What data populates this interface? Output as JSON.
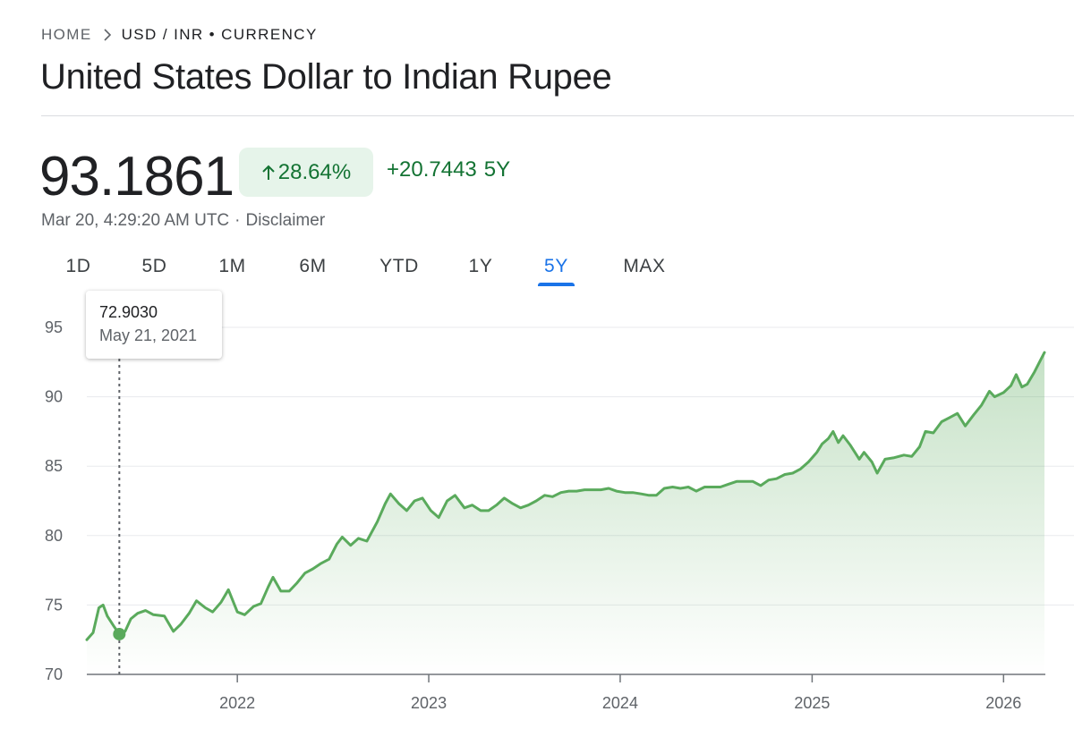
{
  "breadcrumb": {
    "home": "HOME",
    "current": "USD / INR • CURRENCY"
  },
  "title": "United States Dollar to Indian Rupee",
  "quote": {
    "price": "93.1861",
    "change_pct": "28.64%",
    "change_abs": "+20.7443",
    "change_period": "5Y",
    "timestamp": "Mar 20, 4:29:20 AM UTC",
    "disclaimer": "Disclaimer"
  },
  "ranges": [
    {
      "label": "1D"
    },
    {
      "label": "5D"
    },
    {
      "label": "1M"
    },
    {
      "label": "6M"
    },
    {
      "label": "YTD"
    },
    {
      "label": "1Y"
    },
    {
      "label": "5Y",
      "active": true
    },
    {
      "label": "MAX"
    }
  ],
  "tooltip": {
    "value": "72.9030",
    "date": "May 21, 2021"
  },
  "colors": {
    "line": "#5aaa5c",
    "positive": "#137333",
    "badge_bg": "#e6f4ea",
    "accent": "#1a73e8"
  },
  "chart_data": {
    "type": "area",
    "xlabel": "",
    "ylabel": "",
    "ylim": [
      70,
      95
    ],
    "xlim": [
      "2021-03-20",
      "2026-03-20"
    ],
    "y_ticks": [
      70,
      75,
      80,
      85,
      90,
      95
    ],
    "x_ticks": [
      {
        "label": "2022",
        "date": "2022-01-01"
      },
      {
        "label": "2023",
        "date": "2023-01-01"
      },
      {
        "label": "2024",
        "date": "2024-01-01"
      },
      {
        "label": "2025",
        "date": "2025-01-01"
      },
      {
        "label": "2026",
        "date": "2026-01-01"
      }
    ],
    "grid": "horizontal",
    "highlight": {
      "date": "2021-05-21",
      "value": 72.903
    },
    "series": [
      {
        "values": [
          [
            "2021-03-20",
            72.5
          ],
          [
            "2021-04-01",
            73.0
          ],
          [
            "2021-04-12",
            74.8
          ],
          [
            "2021-04-20",
            75.0
          ],
          [
            "2021-04-28",
            74.2
          ],
          [
            "2021-05-10",
            73.5
          ],
          [
            "2021-05-21",
            72.9
          ],
          [
            "2021-06-01",
            73.1
          ],
          [
            "2021-06-12",
            74.0
          ],
          [
            "2021-06-25",
            74.4
          ],
          [
            "2021-07-10",
            74.6
          ],
          [
            "2021-07-25",
            74.3
          ],
          [
            "2021-08-15",
            74.2
          ],
          [
            "2021-09-01",
            73.1
          ],
          [
            "2021-09-15",
            73.6
          ],
          [
            "2021-10-01",
            74.4
          ],
          [
            "2021-10-15",
            75.3
          ],
          [
            "2021-11-01",
            74.8
          ],
          [
            "2021-11-15",
            74.5
          ],
          [
            "2021-12-01",
            75.2
          ],
          [
            "2021-12-15",
            76.1
          ],
          [
            "2022-01-01",
            74.5
          ],
          [
            "2022-01-15",
            74.3
          ],
          [
            "2022-02-01",
            74.9
          ],
          [
            "2022-02-15",
            75.1
          ],
          [
            "2022-03-01",
            76.3
          ],
          [
            "2022-03-10",
            77.0
          ],
          [
            "2022-03-25",
            76.0
          ],
          [
            "2022-04-10",
            76.0
          ],
          [
            "2022-04-25",
            76.6
          ],
          [
            "2022-05-10",
            77.3
          ],
          [
            "2022-05-25",
            77.6
          ],
          [
            "2022-06-10",
            78.0
          ],
          [
            "2022-06-25",
            78.3
          ],
          [
            "2022-07-10",
            79.4
          ],
          [
            "2022-07-20",
            79.9
          ],
          [
            "2022-08-05",
            79.3
          ],
          [
            "2022-08-20",
            79.8
          ],
          [
            "2022-09-05",
            79.6
          ],
          [
            "2022-09-25",
            81.0
          ],
          [
            "2022-10-10",
            82.3
          ],
          [
            "2022-10-20",
            83.0
          ],
          [
            "2022-11-05",
            82.3
          ],
          [
            "2022-11-20",
            81.8
          ],
          [
            "2022-12-05",
            82.5
          ],
          [
            "2022-12-20",
            82.7
          ],
          [
            "2023-01-05",
            81.8
          ],
          [
            "2023-01-20",
            81.3
          ],
          [
            "2023-02-05",
            82.5
          ],
          [
            "2023-02-20",
            82.9
          ],
          [
            "2023-03-10",
            82.0
          ],
          [
            "2023-03-25",
            82.2
          ],
          [
            "2023-04-10",
            81.8
          ],
          [
            "2023-04-25",
            81.8
          ],
          [
            "2023-05-10",
            82.2
          ],
          [
            "2023-05-25",
            82.7
          ],
          [
            "2023-06-10",
            82.3
          ],
          [
            "2023-06-25",
            82.0
          ],
          [
            "2023-07-10",
            82.2
          ],
          [
            "2023-07-25",
            82.5
          ],
          [
            "2023-08-10",
            82.9
          ],
          [
            "2023-08-25",
            82.8
          ],
          [
            "2023-09-10",
            83.1
          ],
          [
            "2023-09-25",
            83.2
          ],
          [
            "2023-10-10",
            83.2
          ],
          [
            "2023-10-25",
            83.3
          ],
          [
            "2023-11-10",
            83.3
          ],
          [
            "2023-11-25",
            83.3
          ],
          [
            "2023-12-10",
            83.4
          ],
          [
            "2023-12-25",
            83.2
          ],
          [
            "2024-01-10",
            83.1
          ],
          [
            "2024-01-25",
            83.1
          ],
          [
            "2024-02-10",
            83.0
          ],
          [
            "2024-02-25",
            82.9
          ],
          [
            "2024-03-10",
            82.9
          ],
          [
            "2024-03-25",
            83.4
          ],
          [
            "2024-04-10",
            83.5
          ],
          [
            "2024-04-25",
            83.4
          ],
          [
            "2024-05-10",
            83.5
          ],
          [
            "2024-05-25",
            83.2
          ],
          [
            "2024-06-10",
            83.5
          ],
          [
            "2024-06-25",
            83.5
          ],
          [
            "2024-07-10",
            83.5
          ],
          [
            "2024-07-25",
            83.7
          ],
          [
            "2024-08-10",
            83.9
          ],
          [
            "2024-08-25",
            83.9
          ],
          [
            "2024-09-10",
            83.9
          ],
          [
            "2024-09-25",
            83.6
          ],
          [
            "2024-10-10",
            84.0
          ],
          [
            "2024-10-25",
            84.1
          ],
          [
            "2024-11-10",
            84.4
          ],
          [
            "2024-11-25",
            84.5
          ],
          [
            "2024-12-10",
            84.8
          ],
          [
            "2024-12-25",
            85.3
          ],
          [
            "2025-01-10",
            86.0
          ],
          [
            "2025-01-20",
            86.6
          ],
          [
            "2025-02-01",
            87.0
          ],
          [
            "2025-02-10",
            87.5
          ],
          [
            "2025-02-20",
            86.7
          ],
          [
            "2025-03-01",
            87.2
          ],
          [
            "2025-03-15",
            86.5
          ],
          [
            "2025-04-01",
            85.5
          ],
          [
            "2025-04-10",
            86.0
          ],
          [
            "2025-04-25",
            85.3
          ],
          [
            "2025-05-05",
            84.5
          ],
          [
            "2025-05-20",
            85.5
          ],
          [
            "2025-06-05",
            85.6
          ],
          [
            "2025-06-25",
            85.8
          ],
          [
            "2025-07-10",
            85.7
          ],
          [
            "2025-07-25",
            86.4
          ],
          [
            "2025-08-05",
            87.5
          ],
          [
            "2025-08-20",
            87.4
          ],
          [
            "2025-09-05",
            88.2
          ],
          [
            "2025-09-20",
            88.5
          ],
          [
            "2025-10-05",
            88.8
          ],
          [
            "2025-10-20",
            87.9
          ],
          [
            "2025-11-05",
            88.7
          ],
          [
            "2025-11-20",
            89.4
          ],
          [
            "2025-12-05",
            90.4
          ],
          [
            "2025-12-15",
            90.0
          ],
          [
            "2026-01-01",
            90.3
          ],
          [
            "2026-01-15",
            90.8
          ],
          [
            "2026-01-25",
            91.6
          ],
          [
            "2026-02-05",
            90.7
          ],
          [
            "2026-02-15",
            90.9
          ],
          [
            "2026-03-01",
            91.8
          ],
          [
            "2026-03-12",
            92.6
          ],
          [
            "2026-03-20",
            93.19
          ]
        ]
      }
    ]
  }
}
